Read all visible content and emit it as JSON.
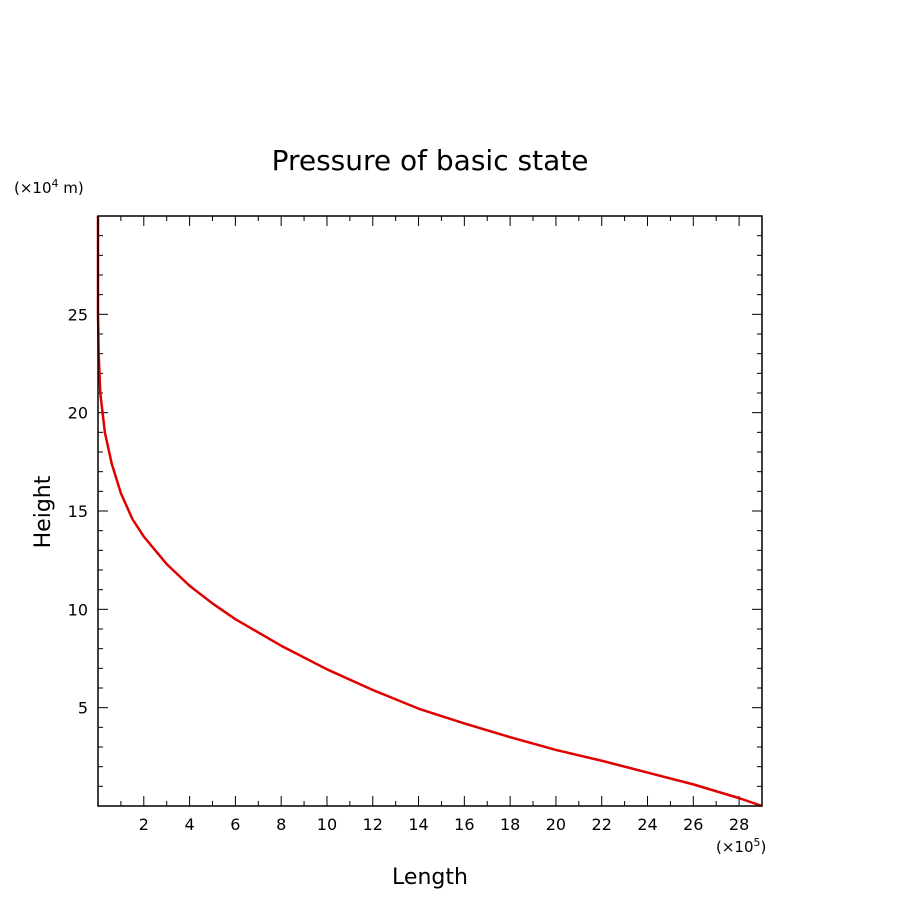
{
  "chart_data": {
    "type": "line",
    "title": "Pressure of basic state",
    "xlabel": "Length",
    "ylabel": "Height",
    "x_scale_label": "(×10",
    "x_scale_exp": "5",
    "x_scale_close": ")",
    "y_scale_label": "(×10",
    "y_scale_exp": "4",
    "y_scale_close": " m)",
    "xlim": [
      0,
      29
    ],
    "ylim": [
      0,
      30
    ],
    "x_ticks": [
      2,
      4,
      6,
      8,
      10,
      12,
      14,
      16,
      18,
      20,
      22,
      24,
      26,
      28
    ],
    "y_ticks": [
      5,
      10,
      15,
      20,
      25
    ],
    "grid": false,
    "series": [
      {
        "color": "#e00000",
        "points": [
          [
            29.0,
            0.0
          ],
          [
            28.0,
            0.4
          ],
          [
            26.0,
            1.1
          ],
          [
            24.0,
            1.7
          ],
          [
            22.0,
            2.3
          ],
          [
            20.0,
            2.85
          ],
          [
            18.0,
            3.5
          ],
          [
            16.0,
            4.2
          ],
          [
            14.0,
            4.95
          ],
          [
            12.0,
            5.9
          ],
          [
            10.0,
            6.95
          ],
          [
            8.0,
            8.15
          ],
          [
            6.0,
            9.5
          ],
          [
            5.0,
            10.3
          ],
          [
            4.0,
            11.2
          ],
          [
            3.0,
            12.3
          ],
          [
            2.0,
            13.7
          ],
          [
            1.5,
            14.6
          ],
          [
            1.0,
            15.9
          ],
          [
            0.6,
            17.4
          ],
          [
            0.3,
            19.0
          ],
          [
            0.1,
            21.0
          ],
          [
            0.03,
            23.0
          ],
          [
            0.0,
            25.0
          ],
          [
            0.0,
            30.0
          ]
        ]
      }
    ]
  }
}
